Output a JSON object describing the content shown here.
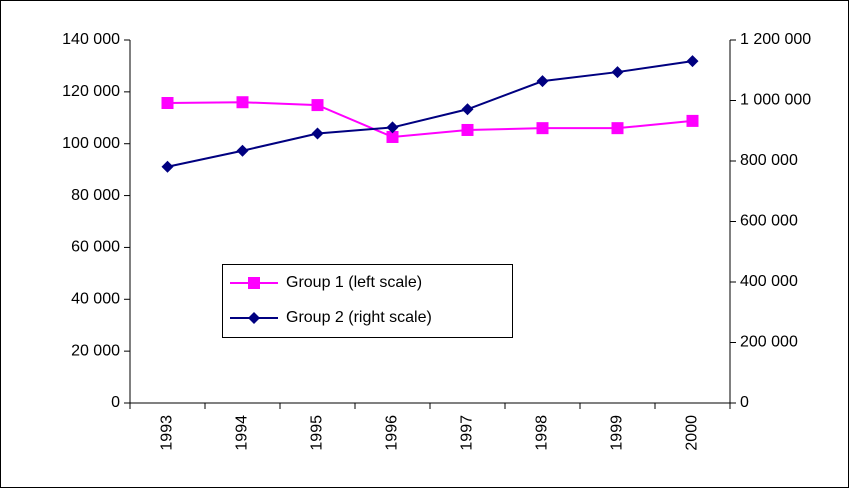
{
  "chart_data": {
    "type": "line",
    "categories": [
      "1993",
      "1994",
      "1995",
      "1996",
      "1997",
      "1998",
      "1999",
      "2000"
    ],
    "series": [
      {
        "name": "Group 1 (left scale)",
        "color": "#ff00ff",
        "marker": "square",
        "values": [
          115700,
          116000,
          114900,
          102600,
          105300,
          106000,
          106000,
          108800
        ]
      },
      {
        "name": "Group 2 (right scale)",
        "color": "#000080",
        "marker": "diamond",
        "axis": "y2",
        "values": [
          781000,
          834000,
          891000,
          911000,
          971000,
          1064000,
          1094000,
          1130000
        ]
      }
    ],
    "ylim": [
      0,
      140000
    ],
    "yticks": [
      0,
      {
        "value": 20000,
        "label": "20 000"
      },
      {
        "value": 40000,
        "label": "40 000"
      },
      {
        "value": 60000,
        "label": "60 000"
      },
      {
        "value": 80000,
        "label": "80 000"
      },
      {
        "value": 100000,
        "label": "100 000"
      },
      {
        "value": 120000,
        "label": "120 000"
      },
      {
        "value": 140000,
        "label": "140 000"
      }
    ],
    "y2lim": [
      0,
      1200000
    ],
    "y2ticks": [
      0,
      {
        "value": 200000,
        "label": "200 000"
      },
      {
        "value": 400000,
        "label": "400 000"
      },
      {
        "value": 600000,
        "label": "600 000"
      },
      {
        "value": 800000,
        "label": "800 000"
      },
      {
        "value": 1000000,
        "label": "1 000 000"
      },
      {
        "value": 1200000,
        "label": "1 200 000"
      }
    ],
    "grid": false
  }
}
